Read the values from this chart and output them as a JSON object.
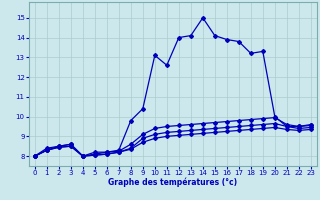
{
  "xlabel": "Graphe des températures (°c)",
  "background_color": "#cce8ec",
  "grid_color": "#aacccc",
  "line_color": "#0000bb",
  "xlim": [
    -0.5,
    23.5
  ],
  "ylim": [
    7.5,
    15.8
  ],
  "xticks": [
    0,
    1,
    2,
    3,
    4,
    5,
    6,
    7,
    8,
    9,
    10,
    11,
    12,
    13,
    14,
    15,
    16,
    17,
    18,
    19,
    20,
    21,
    22,
    23
  ],
  "yticks": [
    8,
    9,
    10,
    11,
    12,
    13,
    14,
    15
  ],
  "hours": [
    0,
    1,
    2,
    3,
    4,
    5,
    6,
    7,
    8,
    9,
    10,
    11,
    12,
    13,
    14,
    15,
    16,
    17,
    18,
    19,
    20,
    21,
    22,
    23
  ],
  "temp_top": [
    8.0,
    8.4,
    8.5,
    8.6,
    8.0,
    8.2,
    8.2,
    8.3,
    9.8,
    10.4,
    13.1,
    12.6,
    14.0,
    14.1,
    15.0,
    14.1,
    13.9,
    13.8,
    13.2,
    13.3,
    10.0,
    9.5,
    9.5,
    9.6
  ],
  "temp_l2": [
    8.0,
    8.3,
    8.5,
    8.6,
    8.0,
    8.1,
    8.2,
    8.25,
    8.6,
    9.1,
    9.4,
    9.5,
    9.55,
    9.6,
    9.65,
    9.7,
    9.75,
    9.8,
    9.85,
    9.9,
    9.95,
    9.6,
    9.5,
    9.55
  ],
  "temp_l3": [
    8.0,
    8.3,
    8.45,
    8.5,
    8.0,
    8.05,
    8.1,
    8.2,
    8.4,
    8.9,
    9.1,
    9.2,
    9.25,
    9.3,
    9.35,
    9.4,
    9.45,
    9.5,
    9.55,
    9.6,
    9.65,
    9.5,
    9.4,
    9.45
  ],
  "temp_l4": [
    8.0,
    8.3,
    8.45,
    8.5,
    8.0,
    8.05,
    8.1,
    8.2,
    8.35,
    8.7,
    8.9,
    9.0,
    9.05,
    9.1,
    9.15,
    9.2,
    9.25,
    9.3,
    9.35,
    9.4,
    9.45,
    9.35,
    9.3,
    9.35
  ]
}
